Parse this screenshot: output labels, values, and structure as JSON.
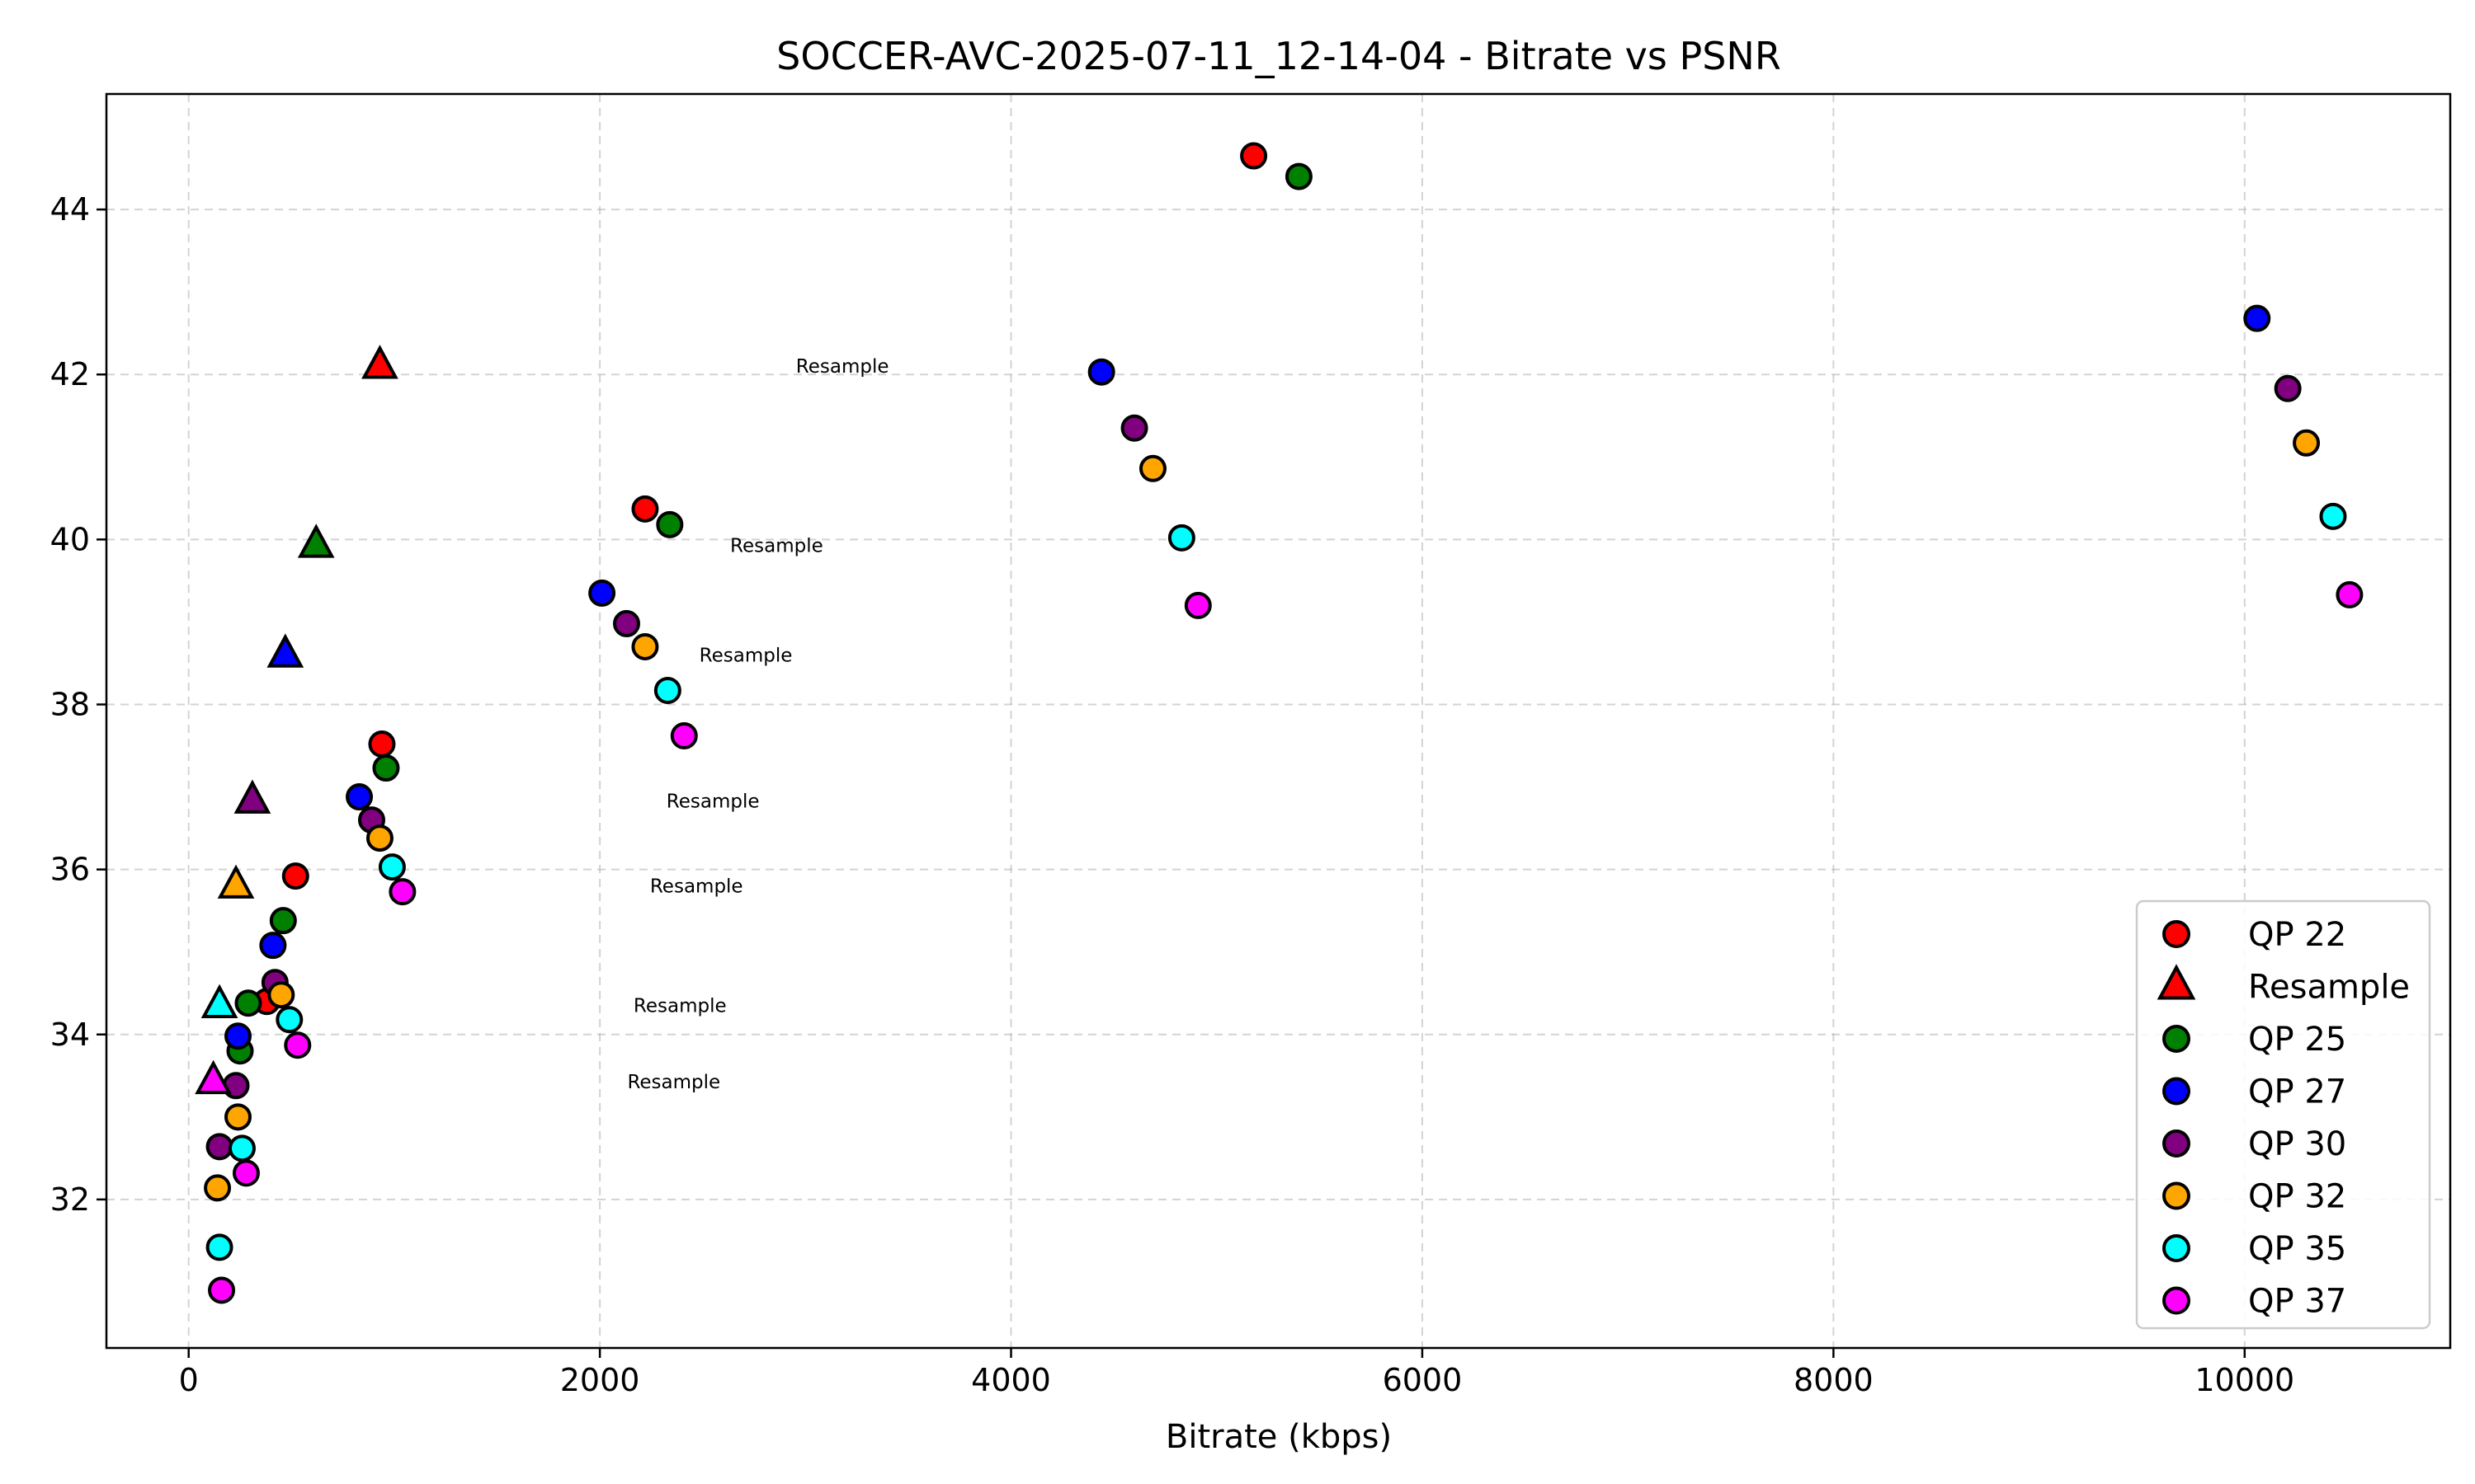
{
  "chart_data": {
    "type": "scatter",
    "title": "SOCCER-AVC-2025-07-11_12-14-04 - Bitrate vs PSNR",
    "xlabel": "Bitrate (kbps)",
    "ylabel": "",
    "xlim": [
      -400,
      11000
    ],
    "ylim": [
      30.2,
      45.4
    ],
    "xticks": [
      0,
      2000,
      4000,
      6000,
      8000,
      10000
    ],
    "yticks": [
      32,
      34,
      36,
      38,
      40,
      42,
      44
    ],
    "grid": true,
    "legend_position": "lower-right",
    "legend": [
      {
        "label": "QP 22",
        "color": "#ff0000",
        "marker": "circle"
      },
      {
        "label": "Resample",
        "color": "#ff0000",
        "marker": "triangle"
      },
      {
        "label": "QP 25",
        "color": "#008000",
        "marker": "circle"
      },
      {
        "label": "QP 27",
        "color": "#0000ff",
        "marker": "circle"
      },
      {
        "label": "QP 30",
        "color": "#800080",
        "marker": "circle"
      },
      {
        "label": "QP 32",
        "color": "#ffa500",
        "marker": "circle"
      },
      {
        "label": "QP 35",
        "color": "#00ffff",
        "marker": "circle"
      },
      {
        "label": "QP 37",
        "color": "#ff00ff",
        "marker": "circle"
      }
    ],
    "series": [
      {
        "name": "QP 22",
        "color": "#ff0000",
        "marker": "circle",
        "points": [
          [
            5180,
            44.65
          ],
          [
            2220,
            40.37
          ],
          [
            940,
            37.52
          ],
          [
            520,
            35.92
          ],
          [
            380,
            34.4
          ]
        ]
      },
      {
        "name": "QP 25",
        "color": "#008000",
        "marker": "circle",
        "points": [
          [
            5400,
            44.4
          ],
          [
            2340,
            40.18
          ],
          [
            960,
            37.23
          ],
          [
            460,
            35.38
          ],
          [
            290,
            34.38
          ],
          [
            250,
            33.8
          ]
        ]
      },
      {
        "name": "QP 27",
        "color": "#0000ff",
        "marker": "circle",
        "points": [
          [
            4440,
            42.03
          ],
          [
            2010,
            39.35
          ],
          [
            830,
            36.88
          ],
          [
            410,
            35.08
          ],
          [
            240,
            33.98
          ],
          [
            10060,
            42.68
          ]
        ]
      },
      {
        "name": "QP 30",
        "color": "#800080",
        "marker": "circle",
        "points": [
          [
            4600,
            41.35
          ],
          [
            2130,
            38.98
          ],
          [
            890,
            36.6
          ],
          [
            420,
            34.63
          ],
          [
            230,
            33.38
          ],
          [
            150,
            32.64
          ],
          [
            10210,
            41.83
          ]
        ]
      },
      {
        "name": "QP 32",
        "color": "#ffa500",
        "marker": "circle",
        "points": [
          [
            4690,
            40.86
          ],
          [
            2220,
            38.7
          ],
          [
            930,
            36.38
          ],
          [
            450,
            34.48
          ],
          [
            240,
            33.0
          ],
          [
            140,
            32.14
          ],
          [
            10300,
            41.17
          ]
        ]
      },
      {
        "name": "QP 35",
        "color": "#00ffff",
        "marker": "circle",
        "points": [
          [
            4830,
            40.02
          ],
          [
            2330,
            38.17
          ],
          [
            990,
            36.03
          ],
          [
            490,
            34.18
          ],
          [
            260,
            32.62
          ],
          [
            150,
            31.42
          ],
          [
            10430,
            40.28
          ]
        ]
      },
      {
        "name": "QP 37",
        "color": "#ff00ff",
        "marker": "circle",
        "points": [
          [
            4910,
            39.2
          ],
          [
            2410,
            37.62
          ],
          [
            1040,
            35.73
          ],
          [
            530,
            33.87
          ],
          [
            280,
            32.32
          ],
          [
            160,
            30.9
          ],
          [
            10510,
            39.33
          ]
        ]
      },
      {
        "name": "Resample",
        "color": "#ff0000",
        "marker": "triangle",
        "points": [
          [
            930,
            42.1
          ]
        ]
      },
      {
        "name": "Resample",
        "color": "#008000",
        "marker": "triangle",
        "points": [
          [
            620,
            39.93
          ]
        ]
      },
      {
        "name": "Resample",
        "color": "#0000ff",
        "marker": "triangle",
        "points": [
          [
            470,
            38.6
          ]
        ]
      },
      {
        "name": "Resample",
        "color": "#800080",
        "marker": "triangle",
        "points": [
          [
            310,
            36.83
          ]
        ]
      },
      {
        "name": "Resample",
        "color": "#ffa500",
        "marker": "triangle",
        "points": [
          [
            230,
            35.8
          ]
        ]
      },
      {
        "name": "Resample",
        "color": "#00ffff",
        "marker": "triangle",
        "points": [
          [
            150,
            34.35
          ]
        ]
      },
      {
        "name": "Resample",
        "color": "#ff00ff",
        "marker": "triangle",
        "points": [
          [
            120,
            33.43
          ]
        ]
      }
    ],
    "annotations": [
      {
        "text": "Resample",
        "x": 3180,
        "y": 42.1
      },
      {
        "text": "Resample",
        "x": 2860,
        "y": 39.93
      },
      {
        "text": "Resample",
        "x": 2710,
        "y": 38.6
      },
      {
        "text": "Resample",
        "x": 2550,
        "y": 36.83
      },
      {
        "text": "Resample",
        "x": 2470,
        "y": 35.8
      },
      {
        "text": "Resample",
        "x": 2390,
        "y": 34.35
      },
      {
        "text": "Resample",
        "x": 2360,
        "y": 33.43
      }
    ]
  }
}
